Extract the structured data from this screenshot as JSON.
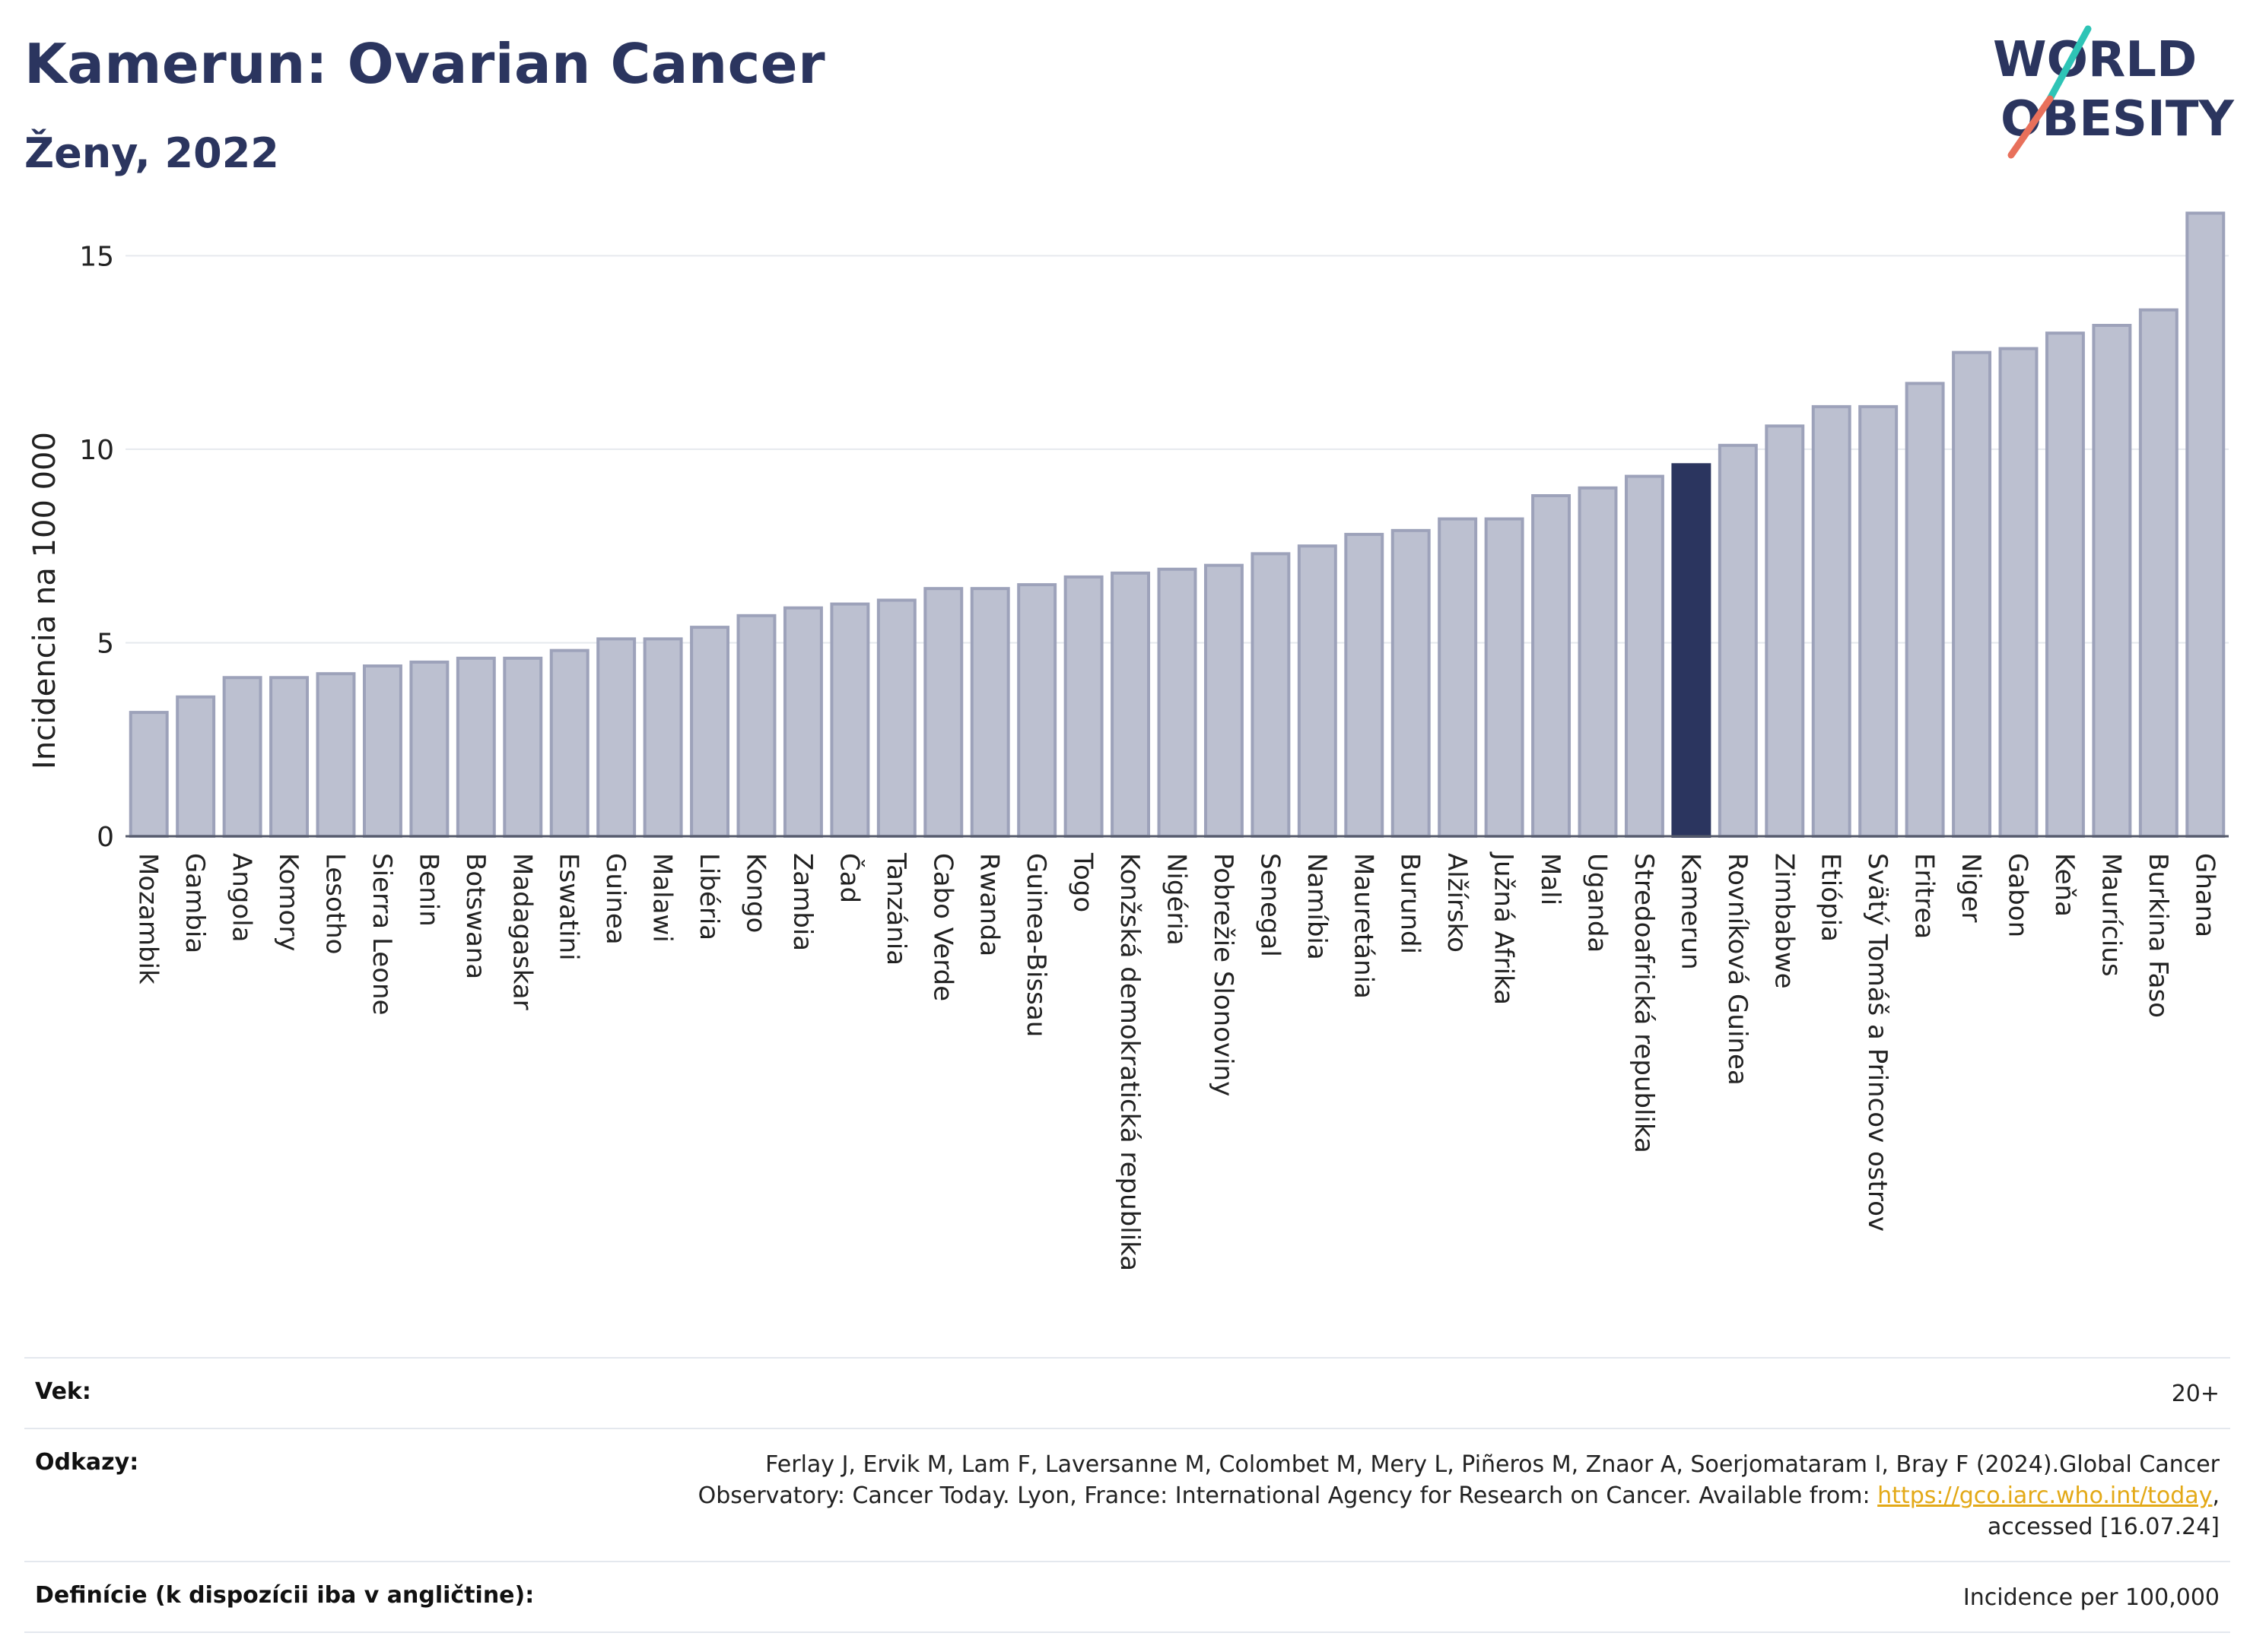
{
  "header": {
    "title": "Kamerun: Ovarian Cancer",
    "subtitle": "Ženy, 2022",
    "logo_line1": "WORLD",
    "logo_line2": "OBESITY"
  },
  "colors": {
    "bar": "#bcc0d0",
    "bar_stroke": "#9da2ba",
    "highlight": "#2b355f",
    "grid": "#e6e9ee",
    "axis": "#555a6b",
    "logo_teal": "#2ec4b6",
    "logo_coral": "#e8705b"
  },
  "chart_data": {
    "type": "bar",
    "title": "Kamerun: Ovarian Cancer",
    "subtitle": "Ženy, 2022",
    "xlabel": "",
    "ylabel": "Incidencia na 100 000",
    "ylim": [
      0,
      16.5
    ],
    "yticks": [
      0,
      5,
      10,
      15
    ],
    "grid": true,
    "highlight": "Kamerun",
    "categories": [
      "Mozambik",
      "Gambia",
      "Angola",
      "Komory",
      "Lesotho",
      "Sierra Leone",
      "Benin",
      "Botswana",
      "Madagaskar",
      "Eswatini",
      "Guinea",
      "Malawi",
      "Libéria",
      "Kongo",
      "Zambia",
      "Čad",
      "Tanzánia",
      "Cabo Verde",
      "Rwanda",
      "Guinea-Bissau",
      "Togo",
      "Konžská demokratická republika",
      "Nigéria",
      "Pobrežie Slonoviny",
      "Senegal",
      "Namíbia",
      "Mauretánia",
      "Burundi",
      "Alžírsko",
      "Južná Afrika",
      "Mali",
      "Uganda",
      "Stredoafrická republika",
      "Kamerun",
      "Rovníková Guinea",
      "Zimbabwe",
      "Etiópia",
      "Svätý Tomáš a Princov ostrov",
      "Eritrea",
      "Niger",
      "Gabon",
      "Keňa",
      "Maurícius",
      "Burkina Faso",
      "Ghana"
    ],
    "values": [
      3.2,
      3.6,
      4.1,
      4.1,
      4.2,
      4.4,
      4.5,
      4.6,
      4.6,
      4.8,
      5.1,
      5.1,
      5.4,
      5.7,
      5.9,
      6.0,
      6.1,
      6.4,
      6.4,
      6.5,
      6.7,
      6.8,
      6.9,
      7.0,
      7.3,
      7.5,
      7.8,
      7.9,
      8.2,
      8.2,
      8.8,
      9.0,
      9.3,
      9.6,
      10.1,
      10.6,
      11.1,
      11.1,
      11.7,
      12.5,
      12.6,
      13.0,
      13.2,
      13.6,
      16.1
    ]
  },
  "footer": {
    "age_label": "Vek:",
    "age_value": "20+",
    "refs_label": "Odkazy:",
    "refs_text_1": "Ferlay J, Ervik M, Lam F, Laversanne M, Colombet M, Mery L, Piñeros M, Znaor A, Soerjomataram I, Bray F (2024).Global Cancer Observatory: Cancer Today. Lyon, France: International Agency for Research on Cancer. Available from: ",
    "refs_link": "https://gco.iarc.who.int/today",
    "refs_text_2": ", accessed [16.07.24]",
    "def_label": "Definície (k dispozícii iba v angličtine):",
    "def_value": "Incidence per 100,000"
  }
}
